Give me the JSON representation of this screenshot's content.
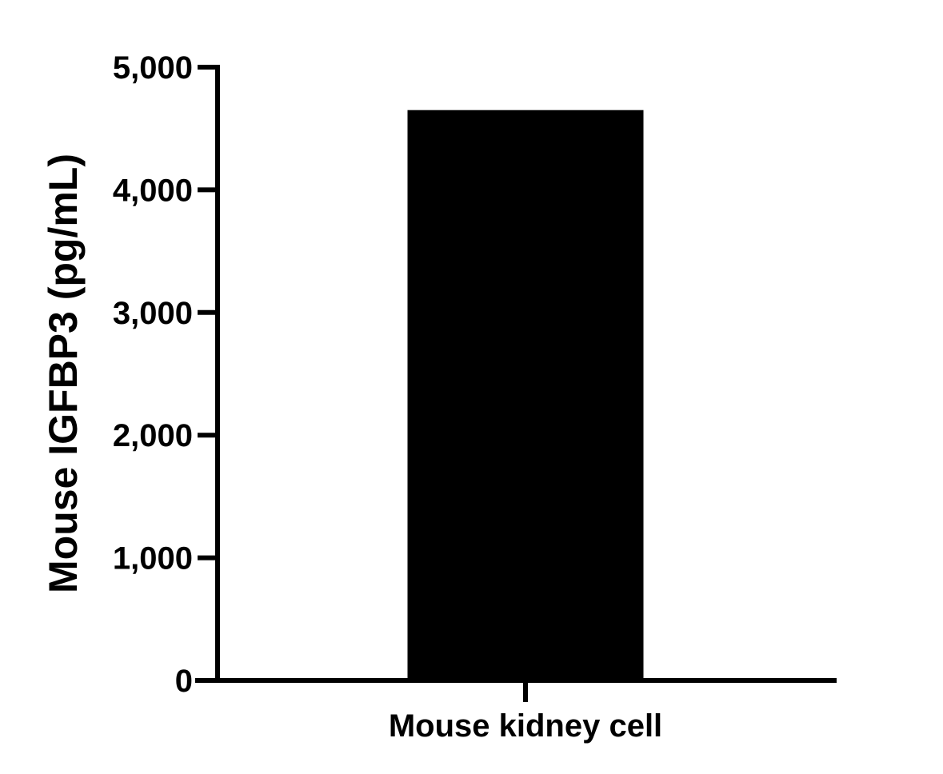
{
  "chart_data": {
    "type": "bar",
    "title": "",
    "xlabel": "",
    "ylabel": "Mouse IGFBP3 (pg/mL)",
    "categories": [
      "Mouse kidney cell"
    ],
    "values": [
      4650
    ],
    "ylim": [
      0,
      5000
    ],
    "yticks": [
      0,
      1000,
      2000,
      3000,
      4000,
      5000
    ],
    "ytick_labels": [
      "0",
      "1,000",
      "2,000",
      "3,000",
      "4,000",
      "5,000"
    ],
    "grid": false,
    "legend": "none",
    "colors": {
      "bar": "#000000",
      "axis": "#000000",
      "background": "#ffffff"
    }
  }
}
